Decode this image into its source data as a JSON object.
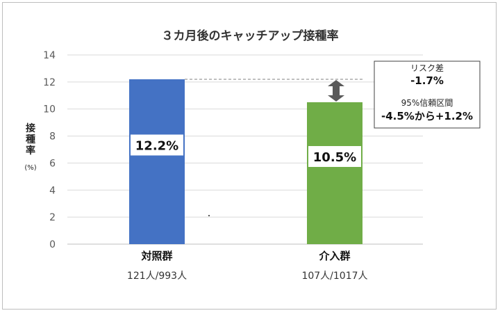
{
  "chart_data": {
    "type": "bar",
    "title": "３カ月後のキャッチアップ接種率",
    "ylabel_chars": [
      "接",
      "種",
      "率"
    ],
    "ylabel_unit": "(%)",
    "ylim": [
      0,
      14
    ],
    "yticks": [
      "0",
      "2",
      "4",
      "6",
      "8",
      "10",
      "12",
      "14"
    ],
    "grid": true,
    "categories": [
      "対照群",
      "介入群"
    ],
    "counts": [
      "121人/993人",
      "107人/1017人"
    ],
    "values": [
      12.2,
      10.5
    ],
    "data_labels": [
      "12.2%",
      "10.5%"
    ],
    "colors": [
      "#4472C4",
      "#70AD47"
    ],
    "annotation": {
      "risk_label": "リスク差",
      "risk_value": "-1.7%",
      "ci_label": "95%信頼区間",
      "ci_value": "-4.5%から+1.2%"
    }
  }
}
